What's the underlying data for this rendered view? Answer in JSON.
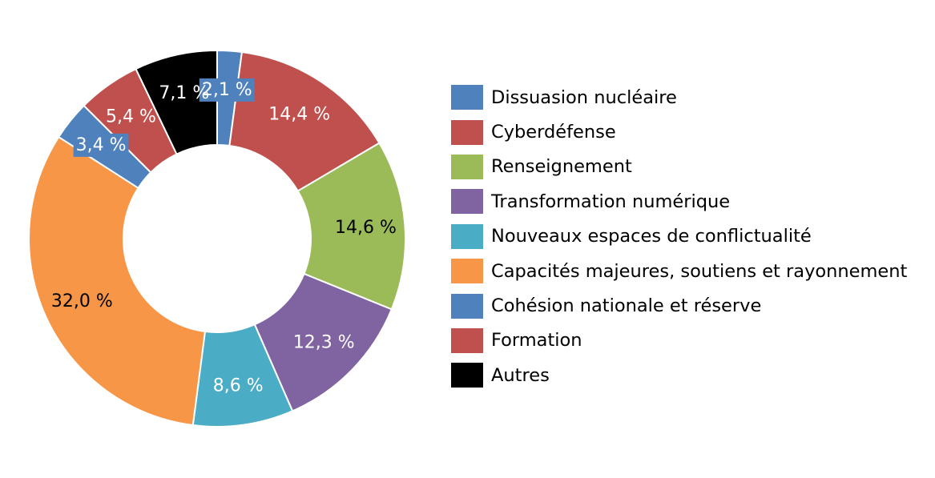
{
  "chart_data": {
    "type": "pie",
    "donut": true,
    "legend_position": "right",
    "categories": [
      "Dissuasion nucléaire",
      "Cyberdéfense",
      "Renseignement",
      "Transformation numérique",
      "Nouveaux espaces de conflictualité",
      "Capacités majeures, soutiens et rayonnement",
      "Cohésion nationale et réserve",
      "Formation",
      "Autres"
    ],
    "values": [
      2.1,
      14.4,
      14.6,
      12.3,
      8.6,
      32.0,
      3.4,
      5.4,
      7.1
    ],
    "value_labels": [
      "2,1 %",
      "14,4 %",
      "14,6 %",
      "12,3 %",
      "8,6 %",
      "32,0 %",
      "3,4 %",
      "5,4 %",
      "7,1 %"
    ],
    "colors": [
      "#4F81BD",
      "#C0504D",
      "#9BBB59",
      "#8064A2",
      "#4BACC6",
      "#F79646",
      "#4F81BD",
      "#C0504D",
      "#000000"
    ],
    "label_text_colors": [
      "#ffffff",
      "#ffffff",
      "#000000",
      "#ffffff",
      "#ffffff",
      "#000000",
      "#ffffff",
      "#ffffff",
      "#ffffff"
    ]
  }
}
